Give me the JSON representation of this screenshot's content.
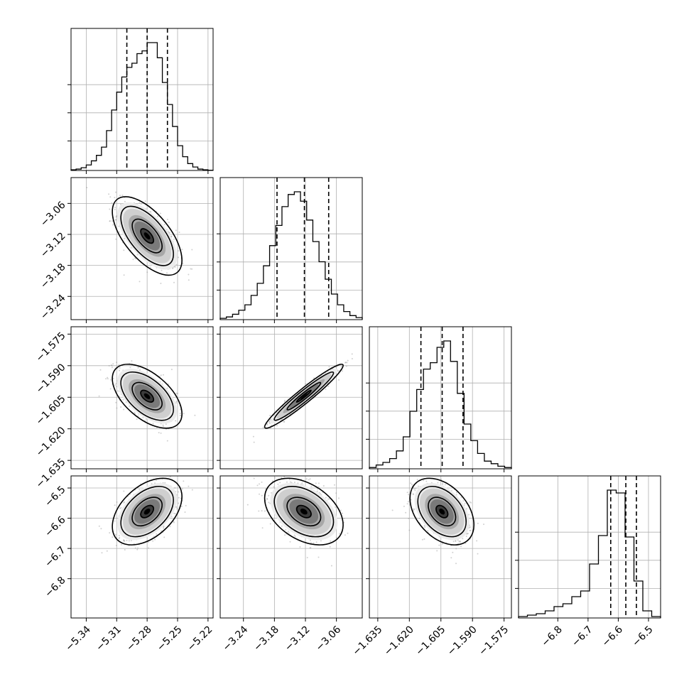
{
  "chart_data": {
    "type": "corner",
    "parameters": [
      {
        "range": [
          -5.355,
          -5.215
        ],
        "ticks": [
          "-5.34",
          "-5.31",
          "-5.28",
          "-5.25",
          "-5.22"
        ],
        "tick_values": [
          -5.34,
          -5.31,
          -5.28,
          -5.25,
          -5.22
        ],
        "quantiles": [
          -5.3,
          -5.28,
          -5.26
        ],
        "mean": -5.28,
        "sd": 0.014
      },
      {
        "range": [
          -3.285,
          -3.01
        ],
        "ticks": [
          "-3.24",
          "-3.18",
          "-3.12",
          "-3.06"
        ],
        "tick_values": [
          -3.24,
          -3.18,
          -3.12,
          -3.06
        ],
        "quantiles": [
          -3.175,
          -3.122,
          -3.075
        ],
        "mean": -3.123,
        "sd": 0.031
      },
      {
        "range": [
          -1.639,
          -1.5715
        ],
        "ticks": [
          "-1.635",
          "-1.620",
          "-1.605",
          "-1.590",
          "-1.575"
        ],
        "tick_values": [
          -1.635,
          -1.62,
          -1.605,
          -1.59,
          -1.575
        ],
        "quantiles": [
          -1.6145,
          -1.6044,
          -1.5945
        ],
        "mean": -1.6045,
        "sd": 0.0062
      },
      {
        "range": [
          -6.93,
          -6.46
        ],
        "ticks": [
          "-6.8",
          "-6.7",
          "-6.6",
          "-6.5"
        ],
        "tick_values": [
          -6.8,
          -6.7,
          -6.6,
          -6.5
        ],
        "quantiles": [
          -6.625,
          -6.575,
          -6.54
        ],
        "mean": -6.578,
        "sd": 0.045
      }
    ],
    "histograms": [
      [
        0.005,
        0.01,
        0.02,
        0.04,
        0.07,
        0.11,
        0.17,
        0.29,
        0.44,
        0.57,
        0.68,
        0.75,
        0.78,
        0.85,
        0.87,
        0.93,
        0.93,
        0.82,
        0.64,
        0.48,
        0.32,
        0.18,
        0.1,
        0.05,
        0.025,
        0.01,
        0.005,
        0.002
      ],
      [
        0.01,
        0.02,
        0.04,
        0.07,
        0.11,
        0.18,
        0.27,
        0.4,
        0.55,
        0.7,
        0.84,
        0.93,
        0.95,
        0.88,
        0.74,
        0.58,
        0.43,
        0.3,
        0.19,
        0.11,
        0.06,
        0.03,
        0.015
      ],
      [
        0.01,
        0.03,
        0.05,
        0.08,
        0.14,
        0.25,
        0.45,
        0.62,
        0.78,
        0.83,
        0.95,
        1.0,
        0.84,
        0.59,
        0.35,
        0.22,
        0.12,
        0.06,
        0.04,
        0.02,
        0.01
      ],
      [
        0.01,
        0.02,
        0.03,
        0.05,
        0.08,
        0.1,
        0.15,
        0.19,
        0.38,
        0.58,
        0.9,
        0.88,
        0.57,
        0.26,
        0.05,
        0.01
      ]
    ],
    "correlations": {
      "1-0": -0.62,
      "2-0": -0.55,
      "2-1": 0.96,
      "3-0": 0.45,
      "3-1": -0.4,
      "3-2": -0.4
    },
    "xlabel": "",
    "ylabel": "",
    "grid": true
  }
}
